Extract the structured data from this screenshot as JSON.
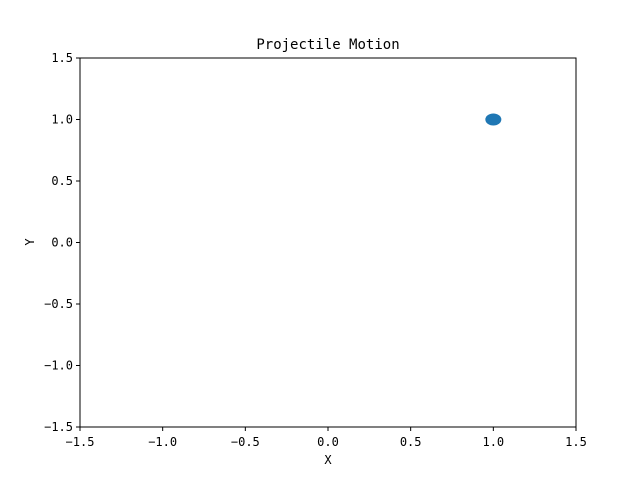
{
  "chart_data": {
    "type": "scatter",
    "title": "Projectile Motion",
    "xlabel": "X",
    "ylabel": "Y",
    "xlim": [
      -1.5,
      1.5
    ],
    "ylim": [
      -1.5,
      1.5
    ],
    "xticks": [
      -1.5,
      -1.0,
      -0.5,
      0.0,
      0.5,
      1.0,
      1.5
    ],
    "yticks": [
      -1.5,
      -1.0,
      -0.5,
      0.0,
      0.5,
      1.0,
      1.5
    ],
    "xtick_labels": [
      "−1.5",
      "−1.0",
      "−0.5",
      "0.0",
      "0.5",
      "1.0",
      "1.5"
    ],
    "ytick_labels": [
      "−1.5",
      "−1.0",
      "−0.5",
      "0.0",
      "0.5",
      "1.0",
      "1.5"
    ],
    "grid": false,
    "series": [
      {
        "points": [
          {
            "x": 1.0,
            "y": 1.0
          }
        ],
        "color": "#1f77b4"
      }
    ]
  }
}
